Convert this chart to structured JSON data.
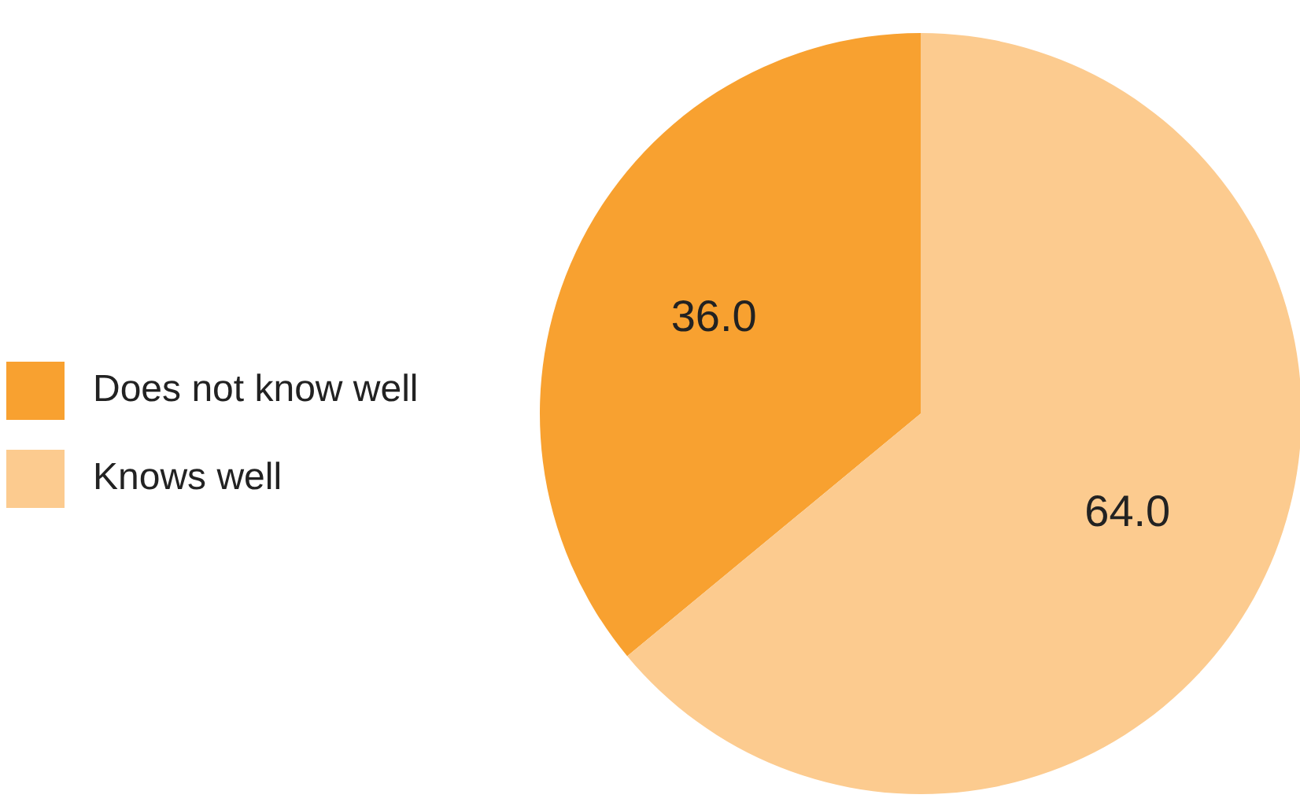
{
  "chart_data": {
    "type": "pie",
    "categories": [
      "Does not know well",
      "Knows well"
    ],
    "values": [
      36,
      64
    ],
    "colors": [
      "#f8a130",
      "#fccb8f"
    ],
    "value_labels": [
      "36.0",
      "64.0"
    ],
    "legend": "left"
  }
}
